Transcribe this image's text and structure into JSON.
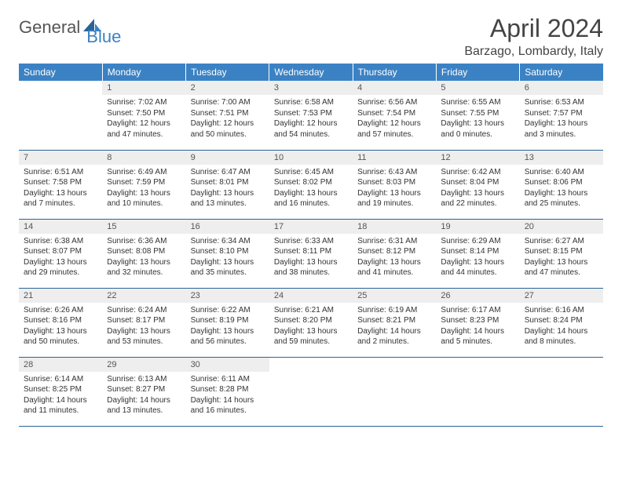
{
  "logo": {
    "general": "General",
    "blue": "Blue"
  },
  "title": "April 2024",
  "location": "Barzago, Lombardy, Italy",
  "colors": {
    "header_bg": "#3b82c4",
    "header_text": "#ffffff",
    "daynum_bg": "#eeeeee",
    "row_border": "#2a6496",
    "body_text": "#333333",
    "title_text": "#444444",
    "logo_gray": "#555555",
    "logo_blue": "#3b82c4"
  },
  "weekdays": [
    "Sunday",
    "Monday",
    "Tuesday",
    "Wednesday",
    "Thursday",
    "Friday",
    "Saturday"
  ],
  "weeks": [
    [
      null,
      {
        "n": "1",
        "sr": "Sunrise: 7:02 AM",
        "ss": "Sunset: 7:50 PM",
        "d1": "Daylight: 12 hours",
        "d2": "and 47 minutes."
      },
      {
        "n": "2",
        "sr": "Sunrise: 7:00 AM",
        "ss": "Sunset: 7:51 PM",
        "d1": "Daylight: 12 hours",
        "d2": "and 50 minutes."
      },
      {
        "n": "3",
        "sr": "Sunrise: 6:58 AM",
        "ss": "Sunset: 7:53 PM",
        "d1": "Daylight: 12 hours",
        "d2": "and 54 minutes."
      },
      {
        "n": "4",
        "sr": "Sunrise: 6:56 AM",
        "ss": "Sunset: 7:54 PM",
        "d1": "Daylight: 12 hours",
        "d2": "and 57 minutes."
      },
      {
        "n": "5",
        "sr": "Sunrise: 6:55 AM",
        "ss": "Sunset: 7:55 PM",
        "d1": "Daylight: 13 hours",
        "d2": "and 0 minutes."
      },
      {
        "n": "6",
        "sr": "Sunrise: 6:53 AM",
        "ss": "Sunset: 7:57 PM",
        "d1": "Daylight: 13 hours",
        "d2": "and 3 minutes."
      }
    ],
    [
      {
        "n": "7",
        "sr": "Sunrise: 6:51 AM",
        "ss": "Sunset: 7:58 PM",
        "d1": "Daylight: 13 hours",
        "d2": "and 7 minutes."
      },
      {
        "n": "8",
        "sr": "Sunrise: 6:49 AM",
        "ss": "Sunset: 7:59 PM",
        "d1": "Daylight: 13 hours",
        "d2": "and 10 minutes."
      },
      {
        "n": "9",
        "sr": "Sunrise: 6:47 AM",
        "ss": "Sunset: 8:01 PM",
        "d1": "Daylight: 13 hours",
        "d2": "and 13 minutes."
      },
      {
        "n": "10",
        "sr": "Sunrise: 6:45 AM",
        "ss": "Sunset: 8:02 PM",
        "d1": "Daylight: 13 hours",
        "d2": "and 16 minutes."
      },
      {
        "n": "11",
        "sr": "Sunrise: 6:43 AM",
        "ss": "Sunset: 8:03 PM",
        "d1": "Daylight: 13 hours",
        "d2": "and 19 minutes."
      },
      {
        "n": "12",
        "sr": "Sunrise: 6:42 AM",
        "ss": "Sunset: 8:04 PM",
        "d1": "Daylight: 13 hours",
        "d2": "and 22 minutes."
      },
      {
        "n": "13",
        "sr": "Sunrise: 6:40 AM",
        "ss": "Sunset: 8:06 PM",
        "d1": "Daylight: 13 hours",
        "d2": "and 25 minutes."
      }
    ],
    [
      {
        "n": "14",
        "sr": "Sunrise: 6:38 AM",
        "ss": "Sunset: 8:07 PM",
        "d1": "Daylight: 13 hours",
        "d2": "and 29 minutes."
      },
      {
        "n": "15",
        "sr": "Sunrise: 6:36 AM",
        "ss": "Sunset: 8:08 PM",
        "d1": "Daylight: 13 hours",
        "d2": "and 32 minutes."
      },
      {
        "n": "16",
        "sr": "Sunrise: 6:34 AM",
        "ss": "Sunset: 8:10 PM",
        "d1": "Daylight: 13 hours",
        "d2": "and 35 minutes."
      },
      {
        "n": "17",
        "sr": "Sunrise: 6:33 AM",
        "ss": "Sunset: 8:11 PM",
        "d1": "Daylight: 13 hours",
        "d2": "and 38 minutes."
      },
      {
        "n": "18",
        "sr": "Sunrise: 6:31 AM",
        "ss": "Sunset: 8:12 PM",
        "d1": "Daylight: 13 hours",
        "d2": "and 41 minutes."
      },
      {
        "n": "19",
        "sr": "Sunrise: 6:29 AM",
        "ss": "Sunset: 8:14 PM",
        "d1": "Daylight: 13 hours",
        "d2": "and 44 minutes."
      },
      {
        "n": "20",
        "sr": "Sunrise: 6:27 AM",
        "ss": "Sunset: 8:15 PM",
        "d1": "Daylight: 13 hours",
        "d2": "and 47 minutes."
      }
    ],
    [
      {
        "n": "21",
        "sr": "Sunrise: 6:26 AM",
        "ss": "Sunset: 8:16 PM",
        "d1": "Daylight: 13 hours",
        "d2": "and 50 minutes."
      },
      {
        "n": "22",
        "sr": "Sunrise: 6:24 AM",
        "ss": "Sunset: 8:17 PM",
        "d1": "Daylight: 13 hours",
        "d2": "and 53 minutes."
      },
      {
        "n": "23",
        "sr": "Sunrise: 6:22 AM",
        "ss": "Sunset: 8:19 PM",
        "d1": "Daylight: 13 hours",
        "d2": "and 56 minutes."
      },
      {
        "n": "24",
        "sr": "Sunrise: 6:21 AM",
        "ss": "Sunset: 8:20 PM",
        "d1": "Daylight: 13 hours",
        "d2": "and 59 minutes."
      },
      {
        "n": "25",
        "sr": "Sunrise: 6:19 AM",
        "ss": "Sunset: 8:21 PM",
        "d1": "Daylight: 14 hours",
        "d2": "and 2 minutes."
      },
      {
        "n": "26",
        "sr": "Sunrise: 6:17 AM",
        "ss": "Sunset: 8:23 PM",
        "d1": "Daylight: 14 hours",
        "d2": "and 5 minutes."
      },
      {
        "n": "27",
        "sr": "Sunrise: 6:16 AM",
        "ss": "Sunset: 8:24 PM",
        "d1": "Daylight: 14 hours",
        "d2": "and 8 minutes."
      }
    ],
    [
      {
        "n": "28",
        "sr": "Sunrise: 6:14 AM",
        "ss": "Sunset: 8:25 PM",
        "d1": "Daylight: 14 hours",
        "d2": "and 11 minutes."
      },
      {
        "n": "29",
        "sr": "Sunrise: 6:13 AM",
        "ss": "Sunset: 8:27 PM",
        "d1": "Daylight: 14 hours",
        "d2": "and 13 minutes."
      },
      {
        "n": "30",
        "sr": "Sunrise: 6:11 AM",
        "ss": "Sunset: 8:28 PM",
        "d1": "Daylight: 14 hours",
        "d2": "and 16 minutes."
      },
      null,
      null,
      null,
      null
    ]
  ]
}
